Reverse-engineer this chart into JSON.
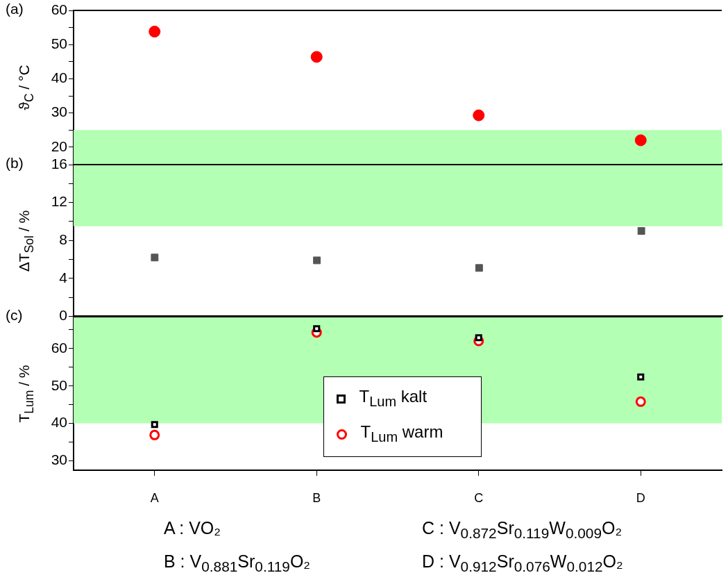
{
  "chart_data": [
    {
      "type": "scatter",
      "title": "(a)",
      "ylabel": "ϑ$_{C}$ / °C",
      "categories": [
        null,
        null,
        null,
        null
      ],
      "tick_labels": "y",
      "ylim": [
        15,
        60
      ],
      "yticks": [
        20,
        {
          "value": 25,
          "label": null
        },
        30,
        {
          "value": 35,
          "label": null
        },
        40,
        {
          "value": 45,
          "label": null
        },
        50,
        {
          "value": 55,
          "label": null
        },
        60
      ],
      "series": [
        {
          "color": "#ff0000",
          "marker": "circle",
          "values": [
            53.8,
            46.4,
            29.3,
            22.0
          ]
        }
      ],
      "bands": [
        {
          "axis": "y",
          "from": 15,
          "to": 25,
          "color": "#b3ffb3"
        }
      ]
    },
    {
      "type": "scatter",
      "title": "(b)",
      "ylabel": "ΔT$_{Sol}$ / %",
      "categories": [
        null,
        null,
        null,
        null
      ],
      "tick_labels": "y",
      "ylim": [
        0,
        16
      ],
      "yticks": [
        0,
        {
          "value": 2,
          "label": null
        },
        4,
        {
          "value": 6,
          "label": null
        },
        8,
        {
          "value": 10,
          "label": null
        },
        12,
        {
          "value": 14,
          "label": null
        },
        16
      ],
      "series": [
        {
          "color": "#555555",
          "marker": "square",
          "values": [
            6.2,
            5.9,
            5.1,
            9.0
          ]
        }
      ],
      "bands": [
        {
          "axis": "y",
          "from": 9.5,
          "to": 16,
          "color": "#b3ffb3"
        }
      ]
    },
    {
      "type": "scatter",
      "title": "(c)",
      "ylabel": "T$_{Lum}$ / %",
      "categories": [
        "A",
        "B",
        "C",
        "D"
      ],
      "ylim": [
        27.5,
        68.5
      ],
      "yticks": [
        30,
        {
          "value": 35,
          "label": null
        },
        40,
        {
          "value": 45,
          "label": null
        },
        50,
        {
          "value": 55,
          "label": null
        },
        60,
        {
          "value": 65,
          "label": null
        }
      ],
      "legend": "bottom",
      "series": [
        {
          "name": "T$_{Lum}$ kalt",
          "color": "#000000",
          "marker": "square",
          "values": [
            39.7,
            65.3,
            62.9,
            52.4
          ]
        },
        {
          "name": "T$_{Lum}$ warm",
          "color": "#ff0000",
          "marker": "circle",
          "values": [
            36.9,
            64.3,
            62.0,
            45.8
          ]
        }
      ],
      "bands": [
        {
          "axis": "y",
          "from": 40,
          "to": 68.5,
          "color": "#b3ffb3"
        }
      ],
      "annotations": [
        "A : VO₂",
        "C : V$_{0.872}$Sr$_{0.119}$W$_{0.009}$O₂",
        "B : V$_{0.881}$Sr$_{0.119}$O₂",
        "D : V$_{0.912}$Sr$_{0.076}$W$_{0.012}$O₂"
      ]
    }
  ]
}
